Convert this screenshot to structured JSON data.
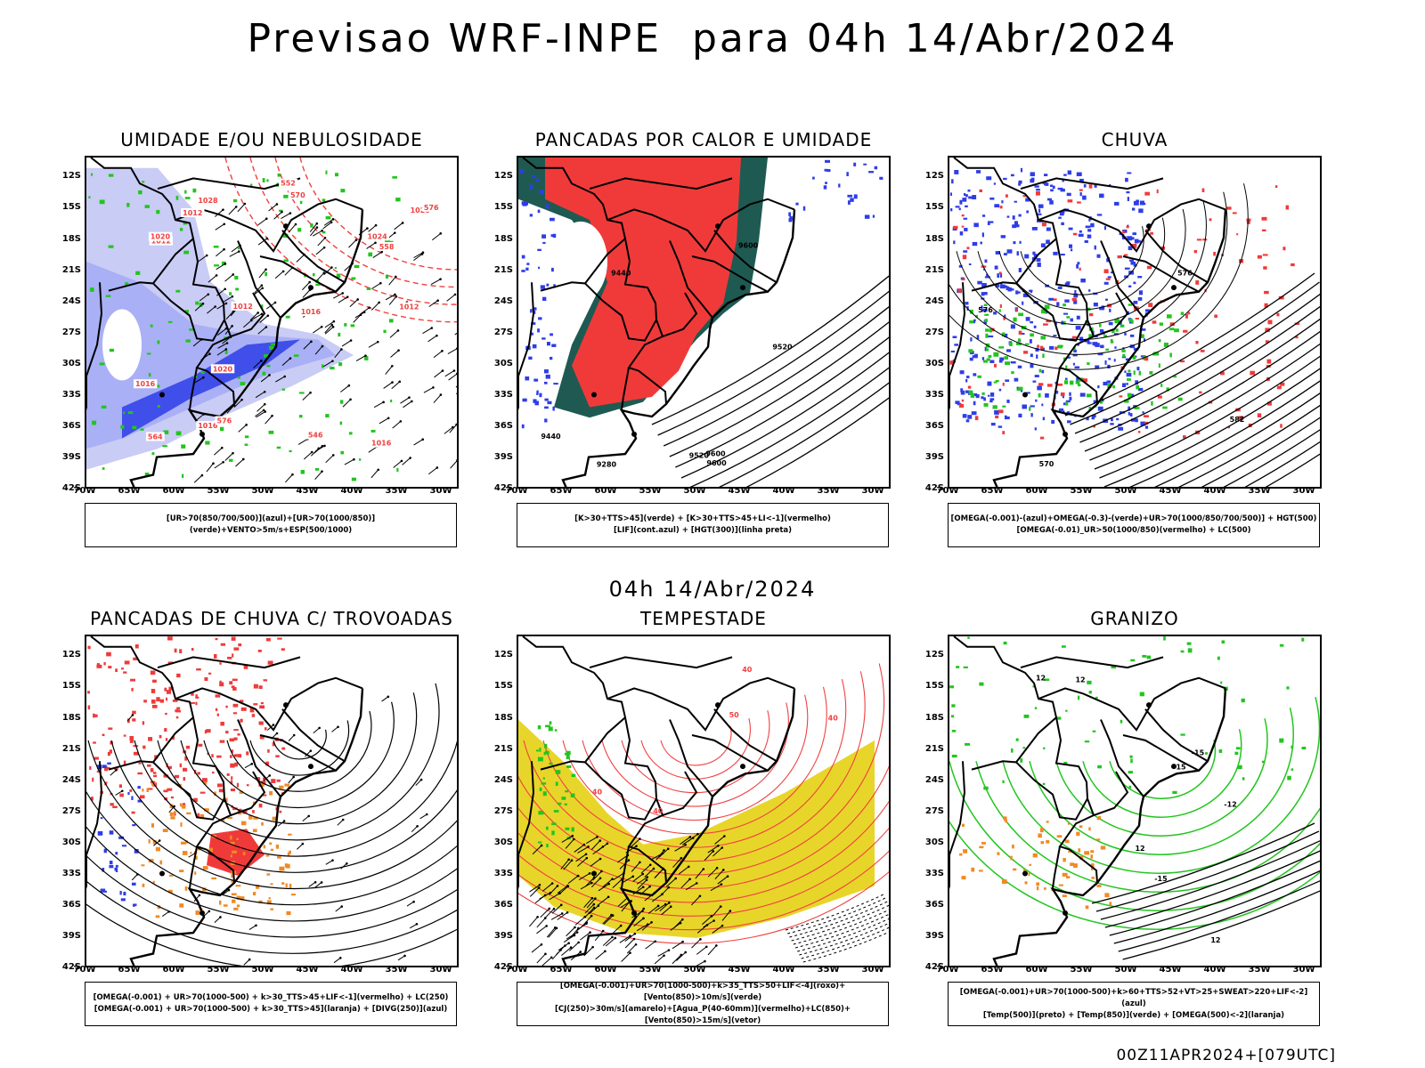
{
  "header": {
    "title": "Previsao WRF-INPE  para 04h 14/Abr/2024",
    "mid_title": "04h 14/Abr/2024",
    "footer": "00Z11APR2024+[079UTC]"
  },
  "axes": {
    "lat_labels": [
      "12S",
      "15S",
      "18S",
      "21S",
      "24S",
      "27S",
      "30S",
      "33S",
      "36S",
      "39S",
      "42S"
    ],
    "lon_labels": [
      "70W",
      "65W",
      "60W",
      "55W",
      "50W",
      "45W",
      "40W",
      "35W",
      "30W"
    ]
  },
  "colors": {
    "blue_fill": "#2e3de8",
    "light_blue": "#a9b0f5",
    "lavender": "#c9ccf5",
    "green_contour": "#22c51e",
    "red_fill": "#f03a3a",
    "dark_teal": "#1f5a52",
    "orange": "#f08a24",
    "yellow": "#e8d52a",
    "border": "#000000"
  },
  "panels": [
    {
      "title": "UMIDADE E/OU NEBULOSIDADE",
      "legend_lines": [
        "[UR>70(850/700/500)](azul)+[UR>70(1000/850)](verde)+VENTO>5m/s+ESP(500/1000)"
      ],
      "contour_labels": [
        "1012",
        "1012",
        "1012",
        "1016",
        "1016",
        "1012",
        "1016",
        "1016",
        "1020",
        "1020",
        "1024",
        "1028",
        "1020",
        "576",
        "576",
        "570",
        "564",
        "558",
        "552",
        "546"
      ]
    },
    {
      "title": "PANCADAS POR CALOR E UMIDADE",
      "legend_lines": [
        "[K>30+TTS>45](verde)  +  [K>30+TTS>45+LI<-1](vermelho)",
        "[LIF](cont.azul)  +  [HGT(300)](linha preta)"
      ],
      "contour_labels": [
        "9600",
        "9520",
        "9440",
        "9600",
        "9520",
        "9440",
        "9600",
        "9280"
      ]
    },
    {
      "title": "CHUVA",
      "legend_lines": [
        "[OMEGA(-0.001)-(azul)+OMEGA(-0.3)-(verde)+UR>70(1000/850/700/500)]  +  HGT(500)",
        "[OMEGA(-0.01)_UR>50(1000/850)(vermelho)  +  LC(500)"
      ],
      "contour_labels": [
        "582",
        "576",
        "576",
        "570"
      ]
    },
    {
      "title": "PANCADAS DE CHUVA C/ TROVOADAS",
      "legend_lines": [
        "[OMEGA(-0.001)  +  UR>70(1000-500)  +  k>30_TTS>45+LIF<-1](vermelho)  +  LC(250)",
        "[OMEGA(-0.001)  +  UR>70(1000-500)  +  k>30_TTS>45](laranja)  +  [DIVG(250)](azul)"
      ],
      "contour_labels": []
    },
    {
      "title": "TEMPESTADE",
      "legend_lines": [
        "[OMEGA(-0.001)+UR>70(1000-500)+k>35_TTS>50+LIF<-4](roxo)+[Vento(850)>10m/s](verde)",
        "[CJ(250)>30m/s](amarelo)+[Agua_P(40-60mm)](vermelho)+LC(850)+[Vento(850)>15m/s](vetor)"
      ],
      "contour_labels": [
        "40",
        "40",
        "40",
        "40",
        "50"
      ]
    },
    {
      "title": "GRANIZO",
      "legend_lines": [
        "[OMEGA(-0.001)+UR>70(1000-500)+k>60+TTS>52+VT>25+SWEAT>220+LIF<-2](azul)",
        "[Temp(500)](preto)  +  [Temp(850)](verde)  +  [OMEGA(500)<-2](laranja)"
      ],
      "contour_labels": [
        "15",
        "12",
        "12",
        "12",
        "12",
        "-15",
        "-15",
        "-12"
      ]
    }
  ]
}
